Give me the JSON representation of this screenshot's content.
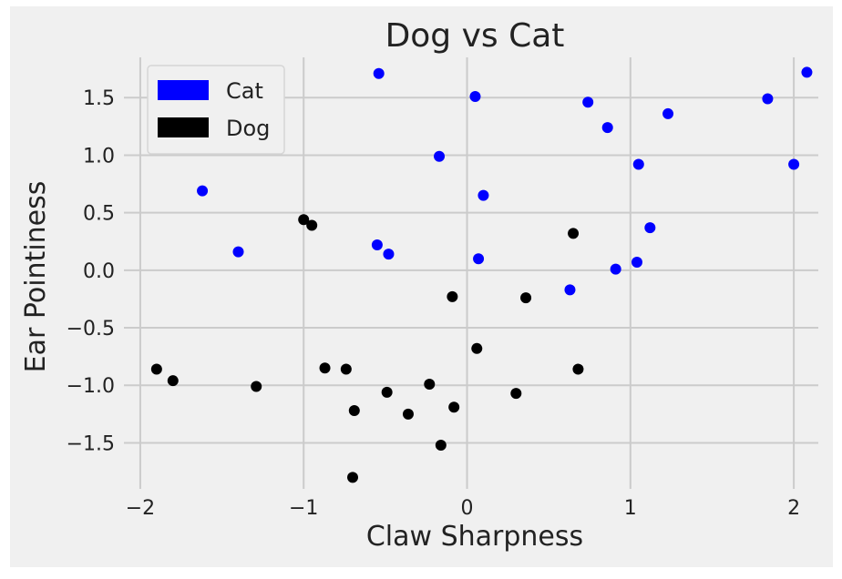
{
  "chart_data": {
    "type": "scatter",
    "title": "Dog vs Cat",
    "xlabel": "Claw Sharpness",
    "ylabel": "Ear Pointiness",
    "xlim": [
      -2.1,
      2.15
    ],
    "ylim": [
      -1.9,
      1.85
    ],
    "xticks": [
      -2,
      -1,
      0,
      1,
      2
    ],
    "yticks": [
      -1.5,
      -1.0,
      -0.5,
      0.0,
      0.5,
      1.0,
      1.5
    ],
    "xtick_labels": [
      "−2",
      "−1",
      "0",
      "1",
      "2"
    ],
    "ytick_labels": [
      "−1.5",
      "−1.0",
      "−0.5",
      "0.0",
      "0.5",
      "1.0",
      "1.5"
    ],
    "grid": true,
    "legend_position": "top-left",
    "series": [
      {
        "name": "Cat",
        "color": "#0000ff",
        "points": [
          [
            -1.62,
            0.69
          ],
          [
            -1.4,
            0.16
          ],
          [
            -0.55,
            0.22
          ],
          [
            -0.48,
            0.14
          ],
          [
            -0.54,
            1.71
          ],
          [
            -0.17,
            0.99
          ],
          [
            0.05,
            1.51
          ],
          [
            0.1,
            0.65
          ],
          [
            0.07,
            0.1
          ],
          [
            0.63,
            -0.17
          ],
          [
            0.74,
            1.46
          ],
          [
            0.86,
            1.24
          ],
          [
            0.91,
            0.01
          ],
          [
            1.04,
            0.07
          ],
          [
            1.05,
            0.92
          ],
          [
            1.12,
            0.37
          ],
          [
            1.23,
            1.36
          ],
          [
            1.84,
            1.49
          ],
          [
            2.0,
            0.92
          ],
          [
            2.08,
            1.72
          ]
        ]
      },
      {
        "name": "Dog",
        "color": "#000000",
        "points": [
          [
            -1.9,
            -0.86
          ],
          [
            -1.8,
            -0.96
          ],
          [
            -1.29,
            -1.01
          ],
          [
            -1.0,
            0.44
          ],
          [
            -0.95,
            0.39
          ],
          [
            -0.87,
            -0.85
          ],
          [
            -0.74,
            -0.86
          ],
          [
            -0.69,
            -1.22
          ],
          [
            -0.7,
            -1.8
          ],
          [
            -0.49,
            -1.06
          ],
          [
            -0.36,
            -1.25
          ],
          [
            -0.23,
            -0.99
          ],
          [
            -0.16,
            -1.52
          ],
          [
            -0.09,
            -0.23
          ],
          [
            -0.08,
            -1.19
          ],
          [
            0.06,
            -0.68
          ],
          [
            0.3,
            -1.07
          ],
          [
            0.36,
            -0.24
          ],
          [
            0.65,
            0.32
          ],
          [
            0.68,
            -0.86
          ]
        ]
      }
    ]
  }
}
